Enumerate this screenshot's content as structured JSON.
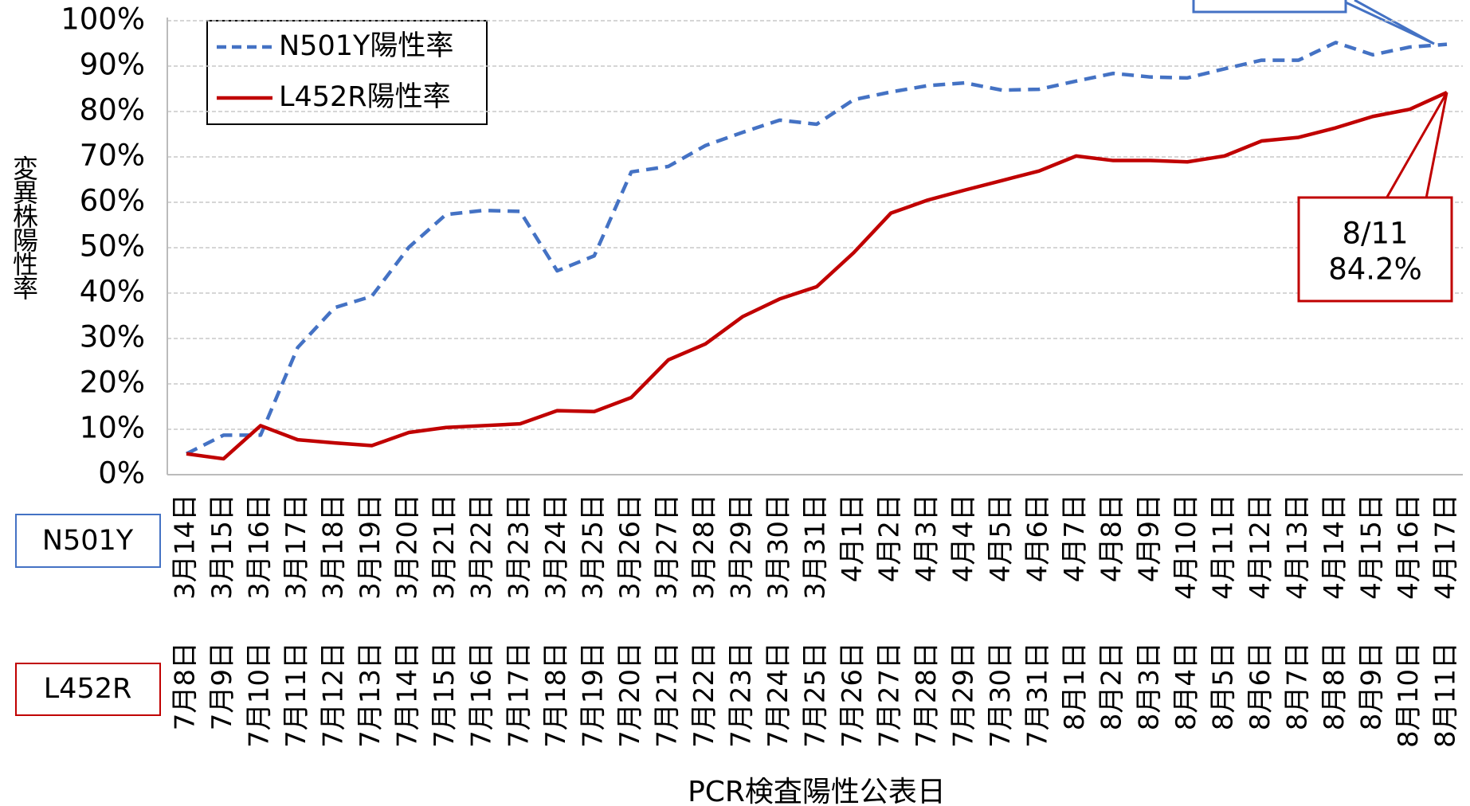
{
  "chart_data": {
    "type": "line",
    "y_label": "変異株陽性率",
    "x_label": "PCR検査陽性公表日",
    "categories": [
      "3月14日",
      "3月15日",
      "3月16日",
      "3月17日",
      "3月18日",
      "3月19日",
      "3月20日",
      "3月21日",
      "3月22日",
      "3月23日",
      "3月24日",
      "3月25日",
      "3月26日",
      "3月27日",
      "3月28日",
      "3月29日",
      "3月30日",
      "3月31日",
      "4月1日",
      "4月2日",
      "4月3日",
      "4月4日",
      "4月5日",
      "4月6日",
      "4月7日",
      "4月8日",
      "4月9日",
      "4月10日",
      "4月11日",
      "4月12日",
      "4月13日",
      "4月14日",
      "4月15日",
      "4月16日",
      "4月17日"
    ],
    "categories_l452r": [
      "7月8日",
      "7月9日",
      "7月10日",
      "7月11日",
      "7月12日",
      "7月13日",
      "7月14日",
      "7月15日",
      "7月16日",
      "7月17日",
      "7月18日",
      "7月19日",
      "7月20日",
      "7月21日",
      "7月22日",
      "7月23日",
      "7月24日",
      "7月25日",
      "7月26日",
      "7月27日",
      "7月28日",
      "7月29日",
      "7月30日",
      "7月31日",
      "8月1日",
      "8月2日",
      "8月3日",
      "8月4日",
      "8月5日",
      "8月6日",
      "8月7日",
      "8月8日",
      "8月9日",
      "8月10日",
      "8月11日"
    ],
    "row_labels": [
      "N501Y",
      "L452R"
    ],
    "series": [
      {
        "name": "N501Y陽性率",
        "color": "#4472c4",
        "dashed": true,
        "values": [
          4.6,
          8.7,
          8.7,
          28.0,
          36.8,
          39.3,
          50.1,
          57.3,
          58.2,
          58.0,
          44.9,
          48.2,
          66.7,
          67.9,
          72.5,
          75.4,
          78.1,
          77.2,
          82.6,
          84.3,
          85.7,
          86.3,
          84.7,
          84.9,
          86.7,
          88.4,
          87.6,
          87.4,
          89.4,
          91.3,
          91.3,
          95.2,
          92.5,
          94.2,
          94.8
        ]
      },
      {
        "name": "L452R陽性率",
        "color": "#c00000",
        "dashed": false,
        "values": [
          4.6,
          3.5,
          10.8,
          7.7,
          7.0,
          6.4,
          9.3,
          10.4,
          10.8,
          11.2,
          14.1,
          13.9,
          17.0,
          25.3,
          28.8,
          34.8,
          38.7,
          41.4,
          48.9,
          57.6,
          60.5,
          62.7,
          64.8,
          66.9,
          70.2,
          69.2,
          69.2,
          68.9,
          70.2,
          73.5,
          74.3,
          76.4,
          78.9,
          80.5,
          84.2
        ]
      }
    ],
    "annotation": {
      "lines": [
        "8/11",
        "84.2%"
      ]
    },
    "ylim": [
      0,
      100
    ],
    "yticks": [
      {
        "value": 0,
        "label": "0%"
      },
      {
        "value": 10,
        "label": "10%"
      },
      {
        "value": 20,
        "label": "20%"
      },
      {
        "value": 30,
        "label": "30%"
      },
      {
        "value": 40,
        "label": "40%"
      },
      {
        "value": 50,
        "label": "50%"
      },
      {
        "value": 60,
        "label": "60%"
      },
      {
        "value": 70,
        "label": "70%"
      },
      {
        "value": 80,
        "label": "80%"
      },
      {
        "value": 90,
        "label": "90%"
      },
      {
        "value": 100,
        "label": "100%"
      }
    ],
    "grid": true
  }
}
